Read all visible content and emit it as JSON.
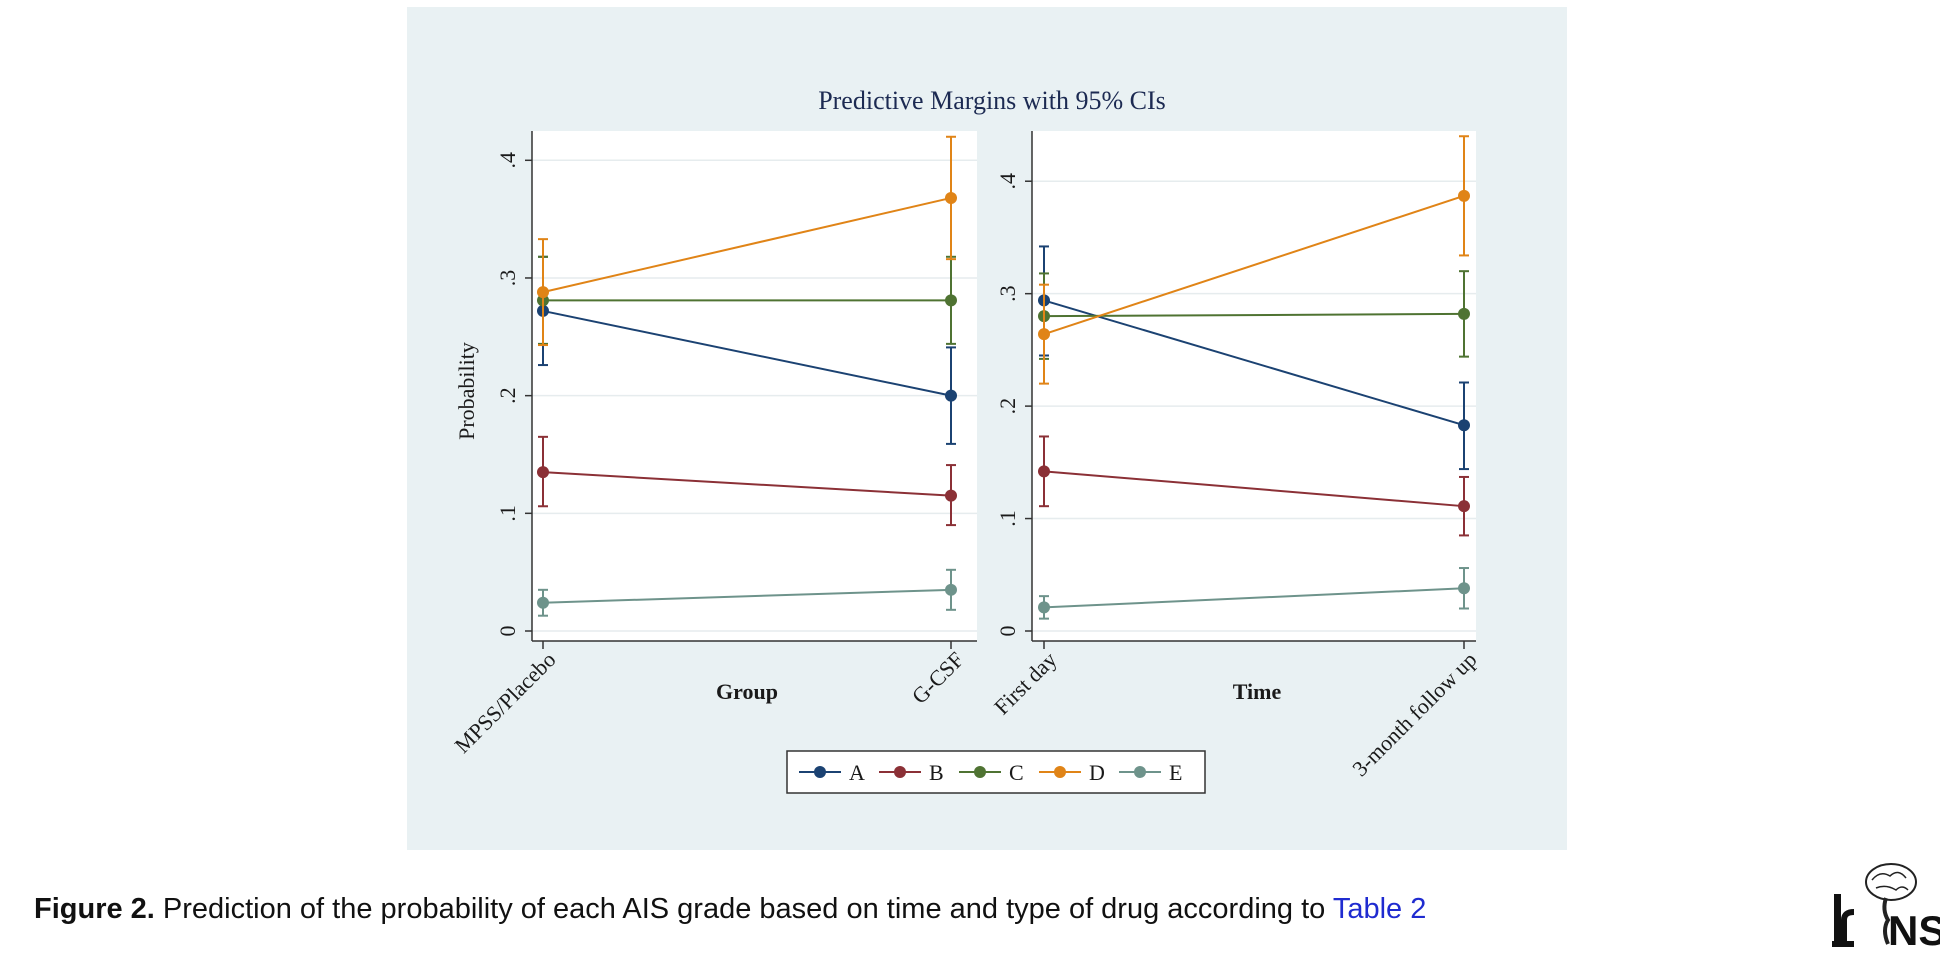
{
  "caption": {
    "label": "Figure 2.",
    "text": " Prediction of the probability of each AIS grade based on time and type of drug according to ",
    "link": "Table 2"
  },
  "logo": {
    "text": "NS",
    "icon": "brain-spine-logo"
  },
  "colors": {
    "panel_background": "#e9f1f3",
    "plot_background": "#ffffff",
    "A": "#1b4272",
    "B": "#8b3036",
    "C": "#4f7332",
    "D": "#e08417",
    "E": "#6e938b"
  },
  "chart_data": {
    "title": "Predictive Margins with 95% CIs",
    "ylabel": "Probability",
    "legend": {
      "position": "bottom-center",
      "entries": [
        "A",
        "B",
        "C",
        "D",
        "E"
      ]
    },
    "grid": true,
    "panels": [
      {
        "type": "line",
        "xlabel": "Group",
        "categories": [
          "MPSS/Placebo",
          "G-CSF"
        ],
        "ylim": [
          0,
          0.43
        ],
        "yticks": [
          0,
          0.1,
          0.2,
          0.3,
          0.4
        ],
        "ytick_labels": [
          "0",
          ".1",
          ".2",
          ".3",
          ".4"
        ],
        "series": [
          {
            "name": "A",
            "values": [
              0.272,
              0.2
            ],
            "ci_low": [
              0.226,
              0.159
            ],
            "ci_high": [
              0.318,
              0.241
            ]
          },
          {
            "name": "B",
            "values": [
              0.135,
              0.115
            ],
            "ci_low": [
              0.106,
              0.09
            ],
            "ci_high": [
              0.165,
              0.141
            ]
          },
          {
            "name": "C",
            "values": [
              0.281,
              0.281
            ],
            "ci_low": [
              0.244,
              0.244
            ],
            "ci_high": [
              0.318,
              0.318
            ]
          },
          {
            "name": "D",
            "values": [
              0.288,
              0.368
            ],
            "ci_low": [
              0.243,
              0.316
            ],
            "ci_high": [
              0.333,
              0.42
            ]
          },
          {
            "name": "E",
            "values": [
              0.024,
              0.035
            ],
            "ci_low": [
              0.013,
              0.018
            ],
            "ci_high": [
              0.035,
              0.052
            ]
          }
        ]
      },
      {
        "type": "line",
        "xlabel": "Time",
        "categories": [
          "First day",
          "3-month follow up"
        ],
        "ylim": [
          0,
          0.45
        ],
        "yticks": [
          0,
          0.1,
          0.2,
          0.3,
          0.4
        ],
        "ytick_labels": [
          "0",
          ".1",
          ".2",
          ".3",
          ".4"
        ],
        "series": [
          {
            "name": "A",
            "values": [
              0.294,
              0.183
            ],
            "ci_low": [
              0.245,
              0.144
            ],
            "ci_high": [
              0.342,
              0.221
            ]
          },
          {
            "name": "B",
            "values": [
              0.142,
              0.111
            ],
            "ci_low": [
              0.111,
              0.085
            ],
            "ci_high": [
              0.173,
              0.137
            ]
          },
          {
            "name": "C",
            "values": [
              0.28,
              0.282
            ],
            "ci_low": [
              0.242,
              0.244
            ],
            "ci_high": [
              0.318,
              0.32
            ]
          },
          {
            "name": "D",
            "values": [
              0.264,
              0.387
            ],
            "ci_low": [
              0.22,
              0.334
            ],
            "ci_high": [
              0.308,
              0.44
            ]
          },
          {
            "name": "E",
            "values": [
              0.021,
              0.038
            ],
            "ci_low": [
              0.011,
              0.02
            ],
            "ci_high": [
              0.031,
              0.056
            ]
          }
        ]
      }
    ]
  }
}
